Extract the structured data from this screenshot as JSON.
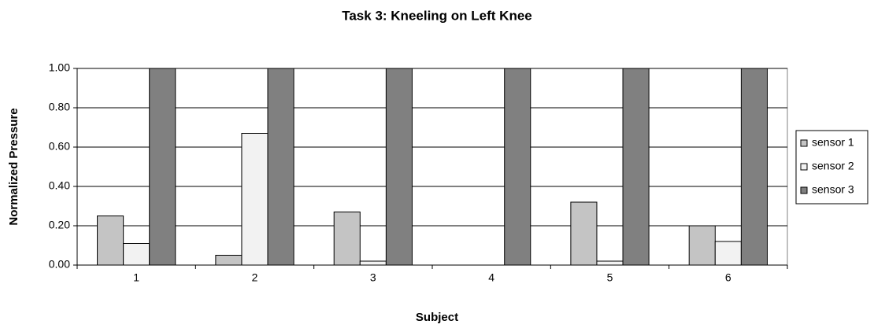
{
  "chart_data": {
    "type": "bar",
    "title": "Task 3: Kneeling on Left Knee",
    "x_label": "Subject",
    "y_label": "Normalized Pressure",
    "categories": [
      "1",
      "2",
      "3",
      "4",
      "5",
      "6"
    ],
    "series": [
      {
        "name": "sensor 1",
        "color": "#c4c4c4",
        "values": [
          0.25,
          0.05,
          0.27,
          0,
          0.32,
          0.2
        ]
      },
      {
        "name": "sensor 2",
        "color": "#f2f2f2",
        "values": [
          0.11,
          0.67,
          0.02,
          0,
          0.02,
          0.12
        ]
      },
      {
        "name": "sensor 3",
        "color": "#808080",
        "values": [
          1,
          1,
          1,
          1,
          1,
          1
        ]
      }
    ],
    "ylim": [
      0,
      1
    ],
    "yticks": [
      {
        "value": 0,
        "label": "0.00"
      },
      {
        "value": 0.2,
        "label": "0.20"
      },
      {
        "value": 0.4,
        "label": "0.40"
      },
      {
        "value": 0.6,
        "label": "0.60"
      },
      {
        "value": 0.8,
        "label": "0.80"
      },
      {
        "value": 1,
        "label": "1.00"
      }
    ],
    "grid": true,
    "legend": "right"
  }
}
